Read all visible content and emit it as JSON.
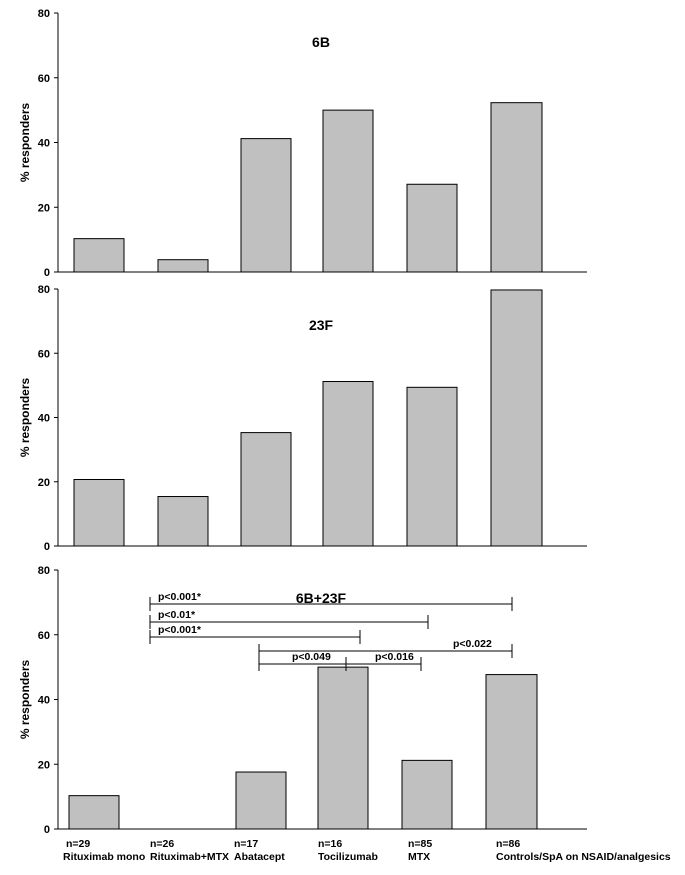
{
  "chart_data": [
    {
      "type": "bar",
      "title": "6B",
      "ylabel": "% responders",
      "ylim": [
        0,
        80
      ],
      "yticks": [
        "0",
        "20",
        "40",
        "60",
        "80"
      ],
      "categories": [
        "Rituximab mono",
        "Rituximab+MTX",
        "Abatacept",
        "Tocilizumab",
        "MTX",
        "Controls/SpA on NSAID/analgesics"
      ],
      "values": [
        10.3,
        3.8,
        41.2,
        50.0,
        27.1,
        52.3
      ]
    },
    {
      "type": "bar",
      "title": "23F",
      "ylabel": "% responders",
      "ylim": [
        0,
        80
      ],
      "yticks": [
        "0",
        "20",
        "40",
        "60",
        "80"
      ],
      "categories": [
        "Rituximab mono",
        "Rituximab+MTX",
        "Abatacept",
        "Tocilizumab",
        "MTX",
        "Controls/SpA on NSAID/analgesics"
      ],
      "values": [
        20.7,
        15.4,
        35.3,
        51.2,
        49.4,
        79.7
      ]
    },
    {
      "type": "bar",
      "title": "6B+23F",
      "ylabel": "% responders",
      "ylim": [
        0,
        80
      ],
      "yticks": [
        "0",
        "20",
        "40",
        "60",
        "80"
      ],
      "categories": [
        "Rituximab mono",
        "Rituximab+MTX",
        "Abatacept",
        "Tocilizumab",
        "MTX",
        "Controls/SpA on NSAID/analgesics"
      ],
      "n_labels": [
        "n=29",
        "n=26",
        "n=17",
        "n=16",
        "n=85",
        "n=86"
      ],
      "values": [
        10.3,
        0,
        17.6,
        50.0,
        21.2,
        47.7
      ],
      "annotations": [
        {
          "text": "p<0.001*",
          "from": 1,
          "to": 5
        },
        {
          "text": "p<0.01*",
          "from": 1,
          "to": 4
        },
        {
          "text": "p<0.001*",
          "from": 1,
          "to": 3
        },
        {
          "text": "p<0.022",
          "from": 2,
          "to": 5
        },
        {
          "text": "p<0.049",
          "from": 2,
          "to": 3
        },
        {
          "text": "p<0.016",
          "from": 3,
          "to": 4
        }
      ]
    }
  ]
}
